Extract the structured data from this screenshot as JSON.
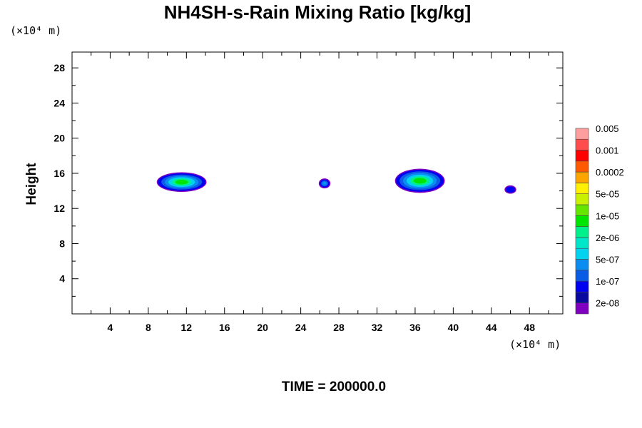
{
  "chart_data": {
    "type": "heatmap",
    "title": "NH4SH-s-Rain Mixing Ratio [kg/kg]",
    "ylabel": "Height",
    "xlabel": "",
    "x_unit_label": "(×10⁴ m)",
    "y_unit_label": "(×10⁴ m)",
    "xlim": [
      0,
      51.5
    ],
    "ylim": [
      0,
      29.8
    ],
    "x_ticks": [
      4,
      8,
      12,
      16,
      20,
      24,
      28,
      32,
      36,
      40,
      44,
      48
    ],
    "y_ticks": [
      4,
      8,
      12,
      16,
      20,
      24,
      28
    ],
    "x_minor_step": 2,
    "y_minor_step": 2,
    "grid": false,
    "time_label": "TIME = 200000.0",
    "colorbar": {
      "placement": "right",
      "colors": [
        "#7f00bf",
        "#0a0a9f",
        "#0000f0",
        "#0a5ce6",
        "#0a8cf0",
        "#00d2f0",
        "#00e6c8",
        "#00f08c",
        "#00e600",
        "#64e600",
        "#c8f000",
        "#fff000",
        "#ffa500",
        "#ff5a00",
        "#ff0000",
        "#ff4d4d",
        "#ff9e9e"
      ],
      "labels": [
        "2e-08",
        "1e-07",
        "5e-07",
        "2e-06",
        "1e-05",
        "5e-05",
        "0.0002",
        "0.001",
        "0.005"
      ]
    },
    "features": [
      {
        "x_range": [
          9.0,
          14.0
        ],
        "y_range": [
          14.0,
          16.0
        ],
        "peak_color": "#00e600"
      },
      {
        "x_range": [
          26.0,
          27.0
        ],
        "y_range": [
          14.4,
          15.3
        ],
        "peak_color": "#0a8cf0"
      },
      {
        "x_range": [
          34.0,
          39.0
        ],
        "y_range": [
          13.9,
          16.4
        ],
        "peak_color": "#00e600"
      },
      {
        "x_range": [
          45.5,
          46.5
        ],
        "y_range": [
          13.8,
          14.5
        ],
        "peak_color": "#0000f0"
      }
    ]
  }
}
